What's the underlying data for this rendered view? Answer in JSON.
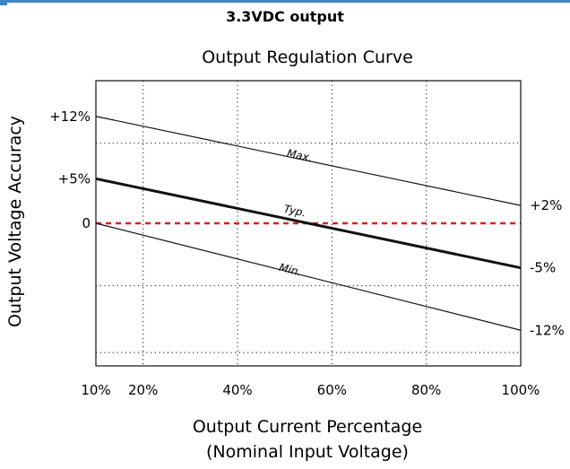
{
  "header": "3.3VDC output",
  "chart_data": {
    "type": "line",
    "title": "Output Regulation Curve",
    "xlabel_lines": [
      "Output Current Percentage",
      "(Nominal Input Voltage)"
    ],
    "ylabel": "Output Voltage Accuracy",
    "x_tick_labels": [
      "10%",
      "20%",
      "40%",
      "60%",
      "80%",
      "100%"
    ],
    "x_ticks": [
      10,
      20,
      40,
      60,
      80,
      100
    ],
    "xlim": [
      10,
      100
    ],
    "y_ticks_left": [
      {
        "value": 12,
        "label": "+12%"
      },
      {
        "value": 5,
        "label": "+5%"
      },
      {
        "value": 0,
        "label": "0"
      }
    ],
    "y_ticks_right": [
      {
        "value": 2,
        "label": "+2%"
      },
      {
        "value": -5,
        "label": "-5%"
      },
      {
        "value": -12,
        "label": "-12%"
      }
    ],
    "ylim": [
      -16,
      16
    ],
    "x_gridlines": [
      20,
      40,
      60,
      80
    ],
    "y_gridlines": [
      9,
      -7,
      -14.5
    ],
    "series": [
      {
        "name": "Max.",
        "x": [
          10,
          100
        ],
        "y": [
          12,
          2
        ],
        "color": "#111111",
        "label_x": 53,
        "label_y": 7.2
      },
      {
        "name": "Typ.",
        "x": [
          10,
          100
        ],
        "y": [
          5,
          -5
        ],
        "color": "#111111",
        "label_x": 52,
        "label_y": 1.0
      },
      {
        "name": "Min.",
        "x": [
          10,
          100
        ],
        "y": [
          0,
          -12
        ],
        "color": "#111111",
        "label_x": 51,
        "label_y": -5.6
      }
    ],
    "zero_line": {
      "y": 0,
      "color": "#e02020"
    },
    "grid": true
  }
}
